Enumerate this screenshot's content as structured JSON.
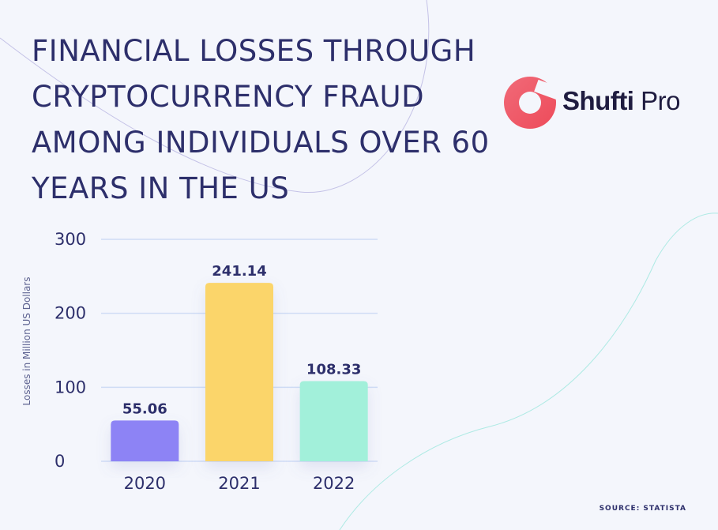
{
  "title": "FINANCIAL LOSSES THROUGH CRYPTOCURRENCY FRAUD AMONG INDIVIDUALS OVER 60 YEARS IN THE US",
  "logo": {
    "name_bold": "Shufti",
    "name_light": "Pro",
    "icon": "shufti-pro-logo-icon"
  },
  "source": "SOURCE: STATISTA",
  "colors": {
    "background": "#f4f6fc",
    "text": "#2d2f6b",
    "grid": "#cfdcf5",
    "logo_accent": "#f25c67"
  },
  "chart_data": {
    "type": "bar",
    "title": "FINANCIAL LOSSES THROUGH CRYPTOCURRENCY FRAUD AMONG INDIVIDUALS OVER 60 YEARS IN THE US",
    "ylabel": "Losses in Million US Dollars",
    "xlabel": "",
    "categories": [
      "2020",
      "2021",
      "2022"
    ],
    "values": [
      55.06,
      241.14,
      108.33
    ],
    "value_labels": [
      "55.06",
      "241.14",
      "108.33"
    ],
    "bar_colors": [
      "#8d83f5",
      "#fbd56a",
      "#a2f0da"
    ],
    "ylim": [
      0,
      300
    ],
    "yticks": [
      0,
      100,
      200,
      300
    ],
    "ytick_labels": [
      "0",
      "100",
      "200",
      "300"
    ],
    "grid": true
  }
}
